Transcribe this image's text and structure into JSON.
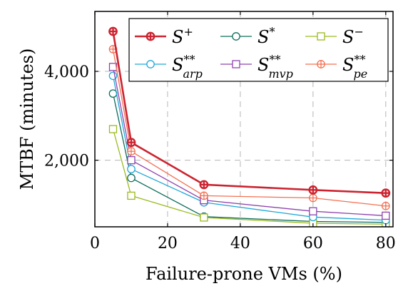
{
  "chart_data": {
    "type": "line",
    "xlabel": "Failure-prone VMs (%)",
    "ylabel": "MTBF (minutes)",
    "xlim": [
      0,
      82
    ],
    "ylim": [
      500,
      5350
    ],
    "xticks": [
      0,
      20,
      40,
      60,
      80
    ],
    "xtick_labels": [
      "0",
      "20",
      "40",
      "60",
      "80"
    ],
    "yticks": [
      2000,
      4000
    ],
    "ytick_labels": [
      "2,000",
      "4,000"
    ],
    "grid": true,
    "legend_position": "top-right",
    "x": [
      5,
      10,
      30,
      60,
      80
    ],
    "series": [
      {
        "name": "S+",
        "base": "S",
        "sup": "+",
        "sub": "",
        "color": "#cc2430",
        "marker": "circle-plus",
        "bold": true,
        "values": [
          4900,
          2400,
          1450,
          1330,
          1260
        ]
      },
      {
        "name": "S*",
        "base": "S",
        "sup": "*",
        "sub": "",
        "color": "#0e6e5c",
        "marker": "circle",
        "values": [
          3500,
          1600,
          730,
          620,
          600
        ]
      },
      {
        "name": "S−",
        "base": "S",
        "sup": "−",
        "sub": "",
        "color": "#9aba1e",
        "marker": "square",
        "values": [
          2700,
          1200,
          710,
          580,
          560
        ]
      },
      {
        "name": "S**arp",
        "base": "S",
        "sup": "**",
        "sub": "arp",
        "color": "#20a8d8",
        "marker": "circle",
        "values": [
          3900,
          1800,
          1050,
          720,
          650
        ]
      },
      {
        "name": "S**mvp",
        "base": "S",
        "sup": "**",
        "sub": "mvp",
        "color": "#8e44ad",
        "marker": "square",
        "values": [
          4100,
          2000,
          1100,
          850,
          750
        ]
      },
      {
        "name": "S**pe",
        "base": "S",
        "sup": "**",
        "sub": "pe",
        "color": "#f37052",
        "marker": "circle-plus",
        "values": [
          4500,
          2200,
          1200,
          1150,
          970
        ]
      }
    ]
  }
}
